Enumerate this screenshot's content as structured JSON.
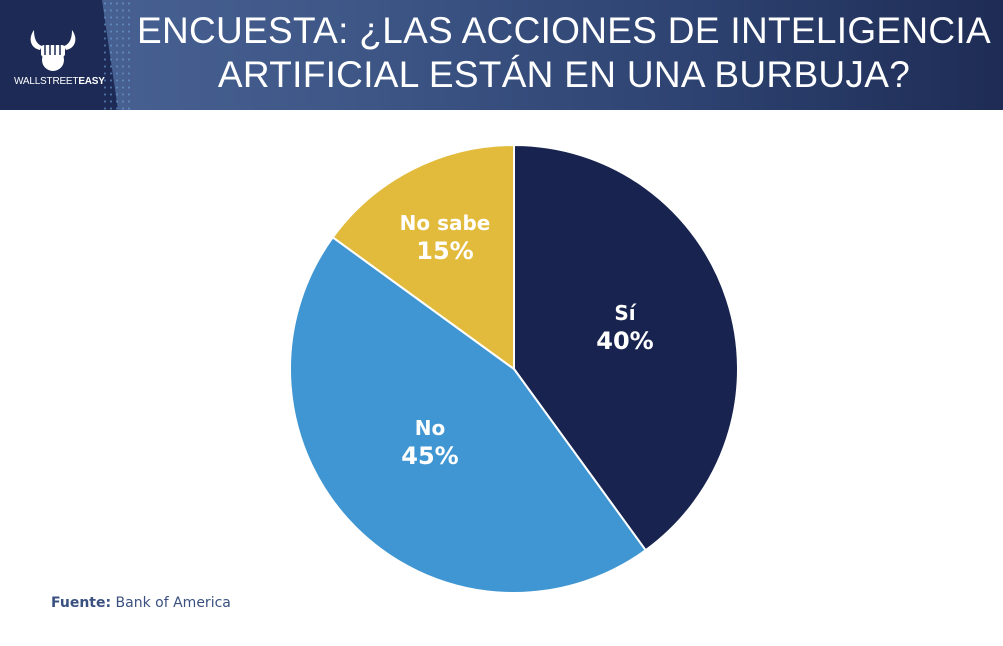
{
  "header": {
    "brand_prefix": "WALLSTREET",
    "brand_suffix": "EASY",
    "title_line1": "ENCUESTA: ¿LAS ACCIONES DE INTELIGENCIA",
    "title_line2": "ARTIFICIAL ESTÁN EN UNA BURBUJA?"
  },
  "chart_data": {
    "type": "pie",
    "title": "ENCUESTA: ¿LAS ACCIONES DE INTELIGENCIA ARTIFICIAL ESTÁN EN UNA BURBUJA?",
    "categories": [
      "Sí",
      "No",
      "No sabe"
    ],
    "values": [
      40,
      45,
      15
    ],
    "labels": [
      "40%",
      "45%",
      "15%"
    ],
    "colors": [
      "#18244f",
      "#4096d2",
      "#e2bb3c"
    ],
    "start_angle_deg": 0,
    "direction": "clockwise"
  },
  "footer": {
    "source_label": "Fuente:",
    "source_value": "Bank of America"
  }
}
